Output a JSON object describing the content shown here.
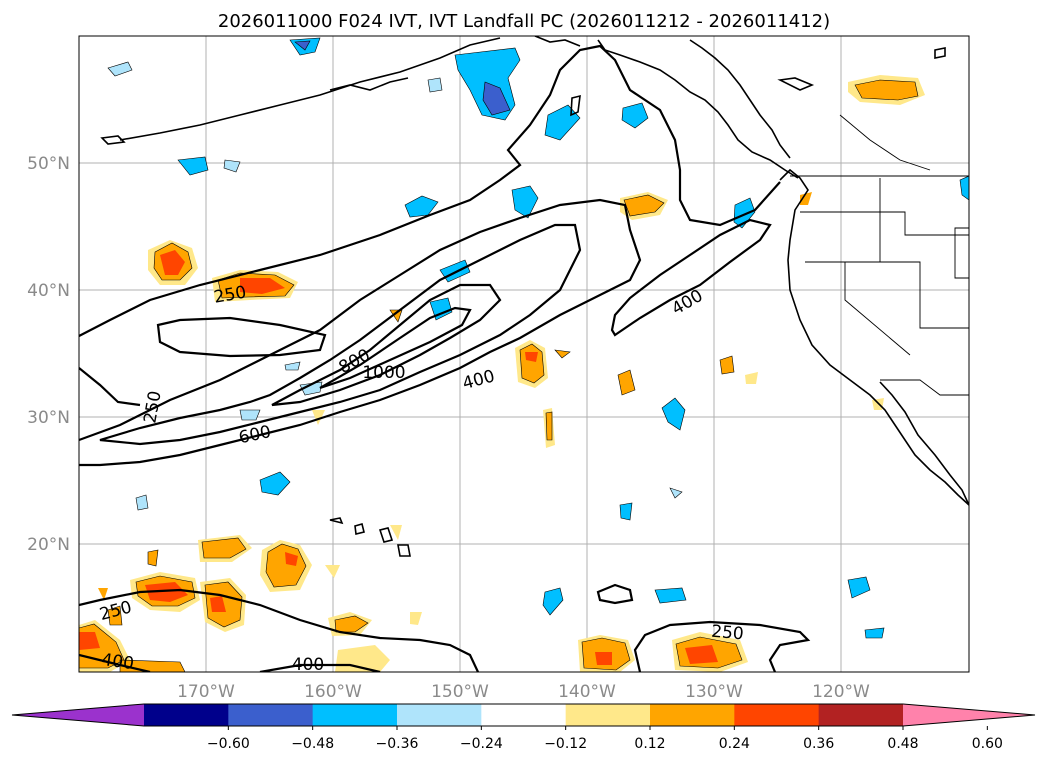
{
  "title": "2026011000 F024 IVT, IVT Landfall PC (2026011212 - 2026011412)",
  "x_ticks": [
    "170°W",
    "160°W",
    "150°W",
    "140°W",
    "130°W",
    "120°W"
  ],
  "y_ticks": [
    "50°N",
    "40°N",
    "30°N",
    "20°N"
  ],
  "colorbar": {
    "colors": [
      "#9b32cd",
      "#00008b",
      "#3b5fcd",
      "#00bfff",
      "#afe4fb",
      "#ffffff",
      "#ffe88a",
      "#ffa500",
      "#ff4500",
      "#b22222",
      "#ff82ab"
    ],
    "ticks": [
      "−0.60",
      "−0.48",
      "−0.36",
      "−0.24",
      "−0.12",
      "0.12",
      "0.24",
      "0.36",
      "0.48",
      "0.60"
    ]
  },
  "contour_labels": [
    "250",
    "250",
    "800",
    "1000",
    "400",
    "400",
    "600",
    "250",
    "250",
    "400",
    "400"
  ]
}
